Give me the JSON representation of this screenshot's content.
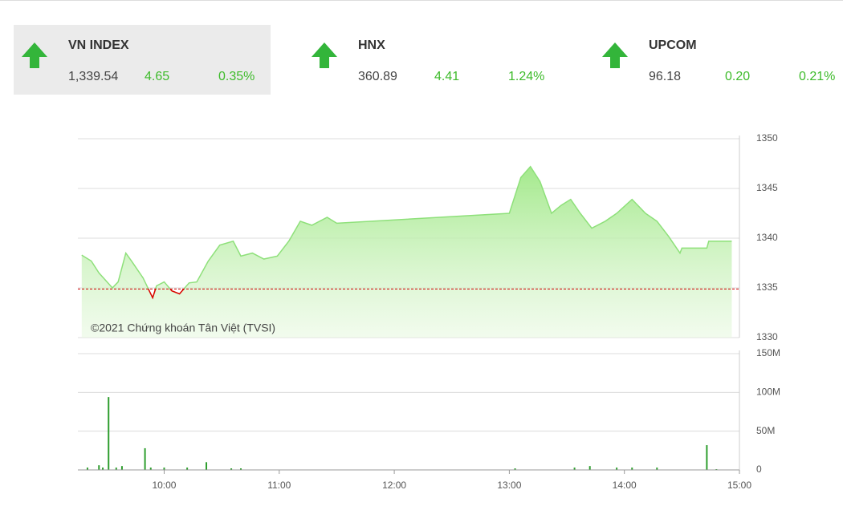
{
  "indices": [
    {
      "name": "VN INDEX",
      "value": "1,339.54",
      "change": "4.65",
      "percent": "0.35%"
    },
    {
      "name": "HNX",
      "value": "360.89",
      "change": "4.41",
      "percent": "1.24%"
    },
    {
      "name": "UPCOM",
      "value": "96.18",
      "change": "0.20",
      "percent": "0.21%"
    }
  ],
  "chart_data": [
    {
      "type": "line",
      "annotation": "©2021 Chứng khoán Tân Việt (TVSI)",
      "x": [
        557,
        562,
        566,
        573,
        576,
        580,
        583,
        589,
        594,
        596,
        600,
        604,
        608,
        613,
        617,
        623,
        629,
        636,
        640,
        646,
        652,
        659,
        665,
        671,
        677,
        685,
        690,
        780,
        786,
        791,
        796,
        802,
        807,
        812,
        817,
        823,
        830,
        836,
        844,
        851,
        857,
        863,
        869,
        870,
        883,
        884,
        896
      ],
      "values": [
        1338.3,
        1337.7,
        1336.5,
        1335.0,
        1335.6,
        1338.5,
        1337.7,
        1336.0,
        1334.0,
        1335.2,
        1335.6,
        1334.7,
        1334.4,
        1335.5,
        1335.6,
        1337.7,
        1339.3,
        1339.7,
        1338.2,
        1338.5,
        1337.9,
        1338.2,
        1339.7,
        1341.7,
        1341.3,
        1342.1,
        1341.5,
        1342.5,
        1346.1,
        1347.2,
        1345.7,
        1342.5,
        1343.3,
        1343.9,
        1342.5,
        1341.0,
        1341.7,
        1342.5,
        1343.9,
        1342.5,
        1341.7,
        1340.2,
        1338.5,
        1339.0,
        1339.0,
        1339.7,
        1339.7
      ],
      "reference": 1334.89,
      "color": "#8ee07a",
      "below_color": "#e00000",
      "reference_color": "#d00000",
      "xlim": [
        555,
        900
      ],
      "ylim": [
        1330,
        1350
      ],
      "yticks": [
        1330,
        1335,
        1340,
        1345,
        1350
      ],
      "grid": true
    },
    {
      "type": "bar",
      "x": [
        560,
        566,
        568,
        571,
        575,
        578,
        590,
        593,
        600,
        612,
        622,
        635,
        640,
        783,
        814,
        822,
        836,
        844,
        857,
        883,
        888
      ],
      "values": [
        3,
        6,
        3,
        94,
        3,
        5,
        28,
        3,
        3,
        3,
        10,
        2,
        2,
        2,
        3,
        5,
        3,
        3,
        3,
        32,
        1
      ],
      "color": "#2e9e2e",
      "xlim": [
        555,
        900
      ],
      "ylim": [
        0,
        150
      ],
      "yticks": [
        {
          "value": 0,
          "label": "0"
        },
        {
          "value": 50,
          "label": "50M"
        },
        {
          "value": 100,
          "label": "100M"
        },
        {
          "value": 150,
          "label": "150M"
        }
      ],
      "xticks": [
        {
          "value": 600,
          "label": "10:00"
        },
        {
          "value": 660,
          "label": "11:00"
        },
        {
          "value": 720,
          "label": "12:00"
        },
        {
          "value": 780,
          "label": "13:00"
        },
        {
          "value": 840,
          "label": "14:00"
        },
        {
          "value": 900,
          "label": "15:00"
        }
      ],
      "grid": true
    }
  ]
}
